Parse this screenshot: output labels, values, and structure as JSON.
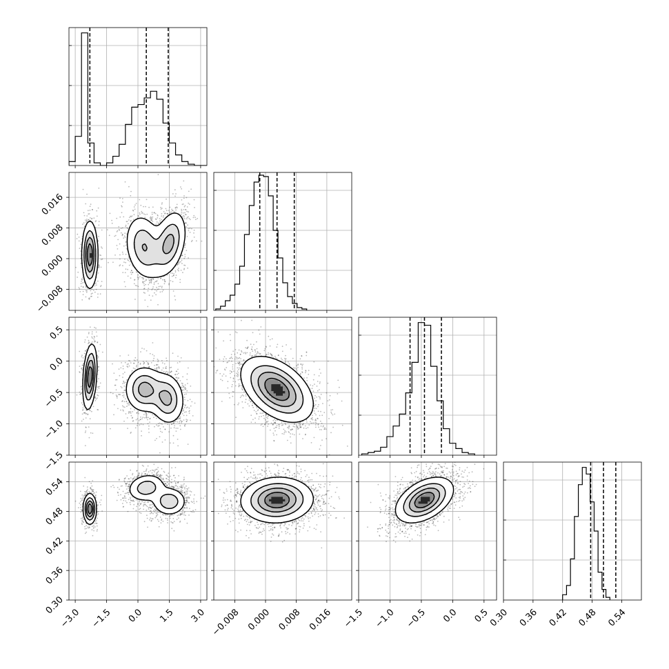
{
  "chart_data": {
    "type": "corner",
    "parameters": 4,
    "grid": true,
    "axes": [
      {
        "range": [
          -3.3,
          3.3
        ],
        "ticks": [
          -3.0,
          -1.5,
          0.0,
          1.5,
          3.0
        ],
        "tick_labels": [
          "−3.0",
          "−1.5",
          "0.0",
          "1.5",
          "3.0"
        ]
      },
      {
        "range": [
          -0.0135,
          0.0225
        ],
        "ticks": [
          -0.008,
          0.0,
          0.008,
          0.016
        ],
        "tick_labels": [
          "−0.008",
          "0.000",
          "0.008",
          "0.016"
        ]
      },
      {
        "range": [
          -1.5,
          0.7
        ],
        "ticks": [
          -1.5,
          -1.0,
          -0.5,
          0.0,
          0.5
        ],
        "tick_labels": [
          "−1.5",
          "−1.0",
          "−0.5",
          "0.0",
          "0.5"
        ]
      },
      {
        "range": [
          0.3,
          0.58
        ],
        "ticks": [
          0.3,
          0.36,
          0.42,
          0.48,
          0.54
        ],
        "tick_labels": [
          "0.30",
          "0.36",
          "0.42",
          "0.48",
          "0.54"
        ]
      }
    ],
    "histograms": [
      {
        "edges_start": -3.3,
        "bin_width": 0.3,
        "counts": [
          3,
          22,
          100,
          17,
          2,
          0,
          2,
          7,
          16,
          31,
          44,
          46,
          51,
          56,
          50,
          32,
          17,
          8,
          3,
          1,
          0,
          0
        ],
        "ymax": 104,
        "quantiles": [
          -2.3,
          0.4,
          1.45
        ]
      },
      {
        "edges_start": -0.013,
        "bin_width": 0.00125,
        "counts": [
          1,
          3,
          7,
          11,
          19,
          32,
          55,
          76,
          93,
          98,
          97,
          83,
          58,
          38,
          20,
          10,
          5,
          2,
          1
        ],
        "ymax": 100,
        "quantiles": [
          -0.0015,
          0.003,
          0.0075
        ]
      },
      {
        "edges_start": -1.45,
        "bin_width": 0.1,
        "counts": [
          1,
          2,
          3,
          6,
          14,
          22,
          31,
          47,
          70,
          100,
          98,
          67,
          41,
          20,
          9,
          5,
          2,
          1
        ],
        "ymax": 104,
        "quantiles": [
          -0.68,
          -0.45,
          -0.18
        ]
      },
      {
        "edges_start": 0.42,
        "bin_width": 0.008,
        "counts": [
          4,
          11,
          31,
          63,
          87,
          100,
          95,
          74,
          52,
          21,
          8,
          2
        ],
        "ymax": 104,
        "quantiles": [
          0.477,
          0.503,
          0.528
        ]
      }
    ],
    "pairs": [
      {
        "x": 0,
        "y": 1,
        "components": [
          {
            "cx": -2.3,
            "cy": 0.001,
            "sx": 0.18,
            "sy": 0.0042,
            "rho": 0.0,
            "weight": 0.27
          },
          {
            "cx": 0.3,
            "cy": 0.003,
            "sx": 0.45,
            "sy": 0.0042,
            "rho": -0.2,
            "weight": 0.37
          },
          {
            "cx": 1.5,
            "cy": 0.004,
            "sx": 0.4,
            "sy": 0.0042,
            "rho": 0.35,
            "weight": 0.36
          }
        ]
      },
      {
        "x": 0,
        "y": 2,
        "components": [
          {
            "cx": -2.3,
            "cy": -0.25,
            "sx": 0.16,
            "sy": 0.25,
            "rho": 0.3,
            "weight": 0.27
          },
          {
            "cx": 0.3,
            "cy": -0.45,
            "sx": 0.45,
            "sy": 0.18,
            "rho": 0.0,
            "weight": 0.38
          },
          {
            "cx": 1.4,
            "cy": -0.6,
            "sx": 0.4,
            "sy": 0.2,
            "rho": -0.1,
            "weight": 0.35
          }
        ]
      },
      {
        "x": 0,
        "y": 3,
        "components": [
          {
            "cx": -2.3,
            "cy": 0.485,
            "sx": 0.15,
            "sy": 0.015,
            "rho": 0.0,
            "weight": 0.27
          },
          {
            "cx": 0.4,
            "cy": 0.528,
            "sx": 0.45,
            "sy": 0.014,
            "rho": 0.15,
            "weight": 0.37
          },
          {
            "cx": 1.5,
            "cy": 0.5,
            "sx": 0.4,
            "sy": 0.014,
            "rho": 0.0,
            "weight": 0.36
          }
        ]
      },
      {
        "x": 1,
        "y": 2,
        "components": [
          {
            "cx": 0.003,
            "cy": -0.45,
            "sx": 0.0045,
            "sy": 0.25,
            "rho": -0.45,
            "weight": 1.0
          }
        ]
      },
      {
        "x": 1,
        "y": 3,
        "components": [
          {
            "cx": 0.003,
            "cy": 0.503,
            "sx": 0.0045,
            "sy": 0.022,
            "rho": 0.05,
            "weight": 1.0
          }
        ]
      },
      {
        "x": 2,
        "y": 3,
        "components": [
          {
            "cx": -0.45,
            "cy": 0.503,
            "sx": 0.22,
            "sy": 0.022,
            "rho": 0.45,
            "weight": 1.0
          }
        ]
      }
    ]
  }
}
